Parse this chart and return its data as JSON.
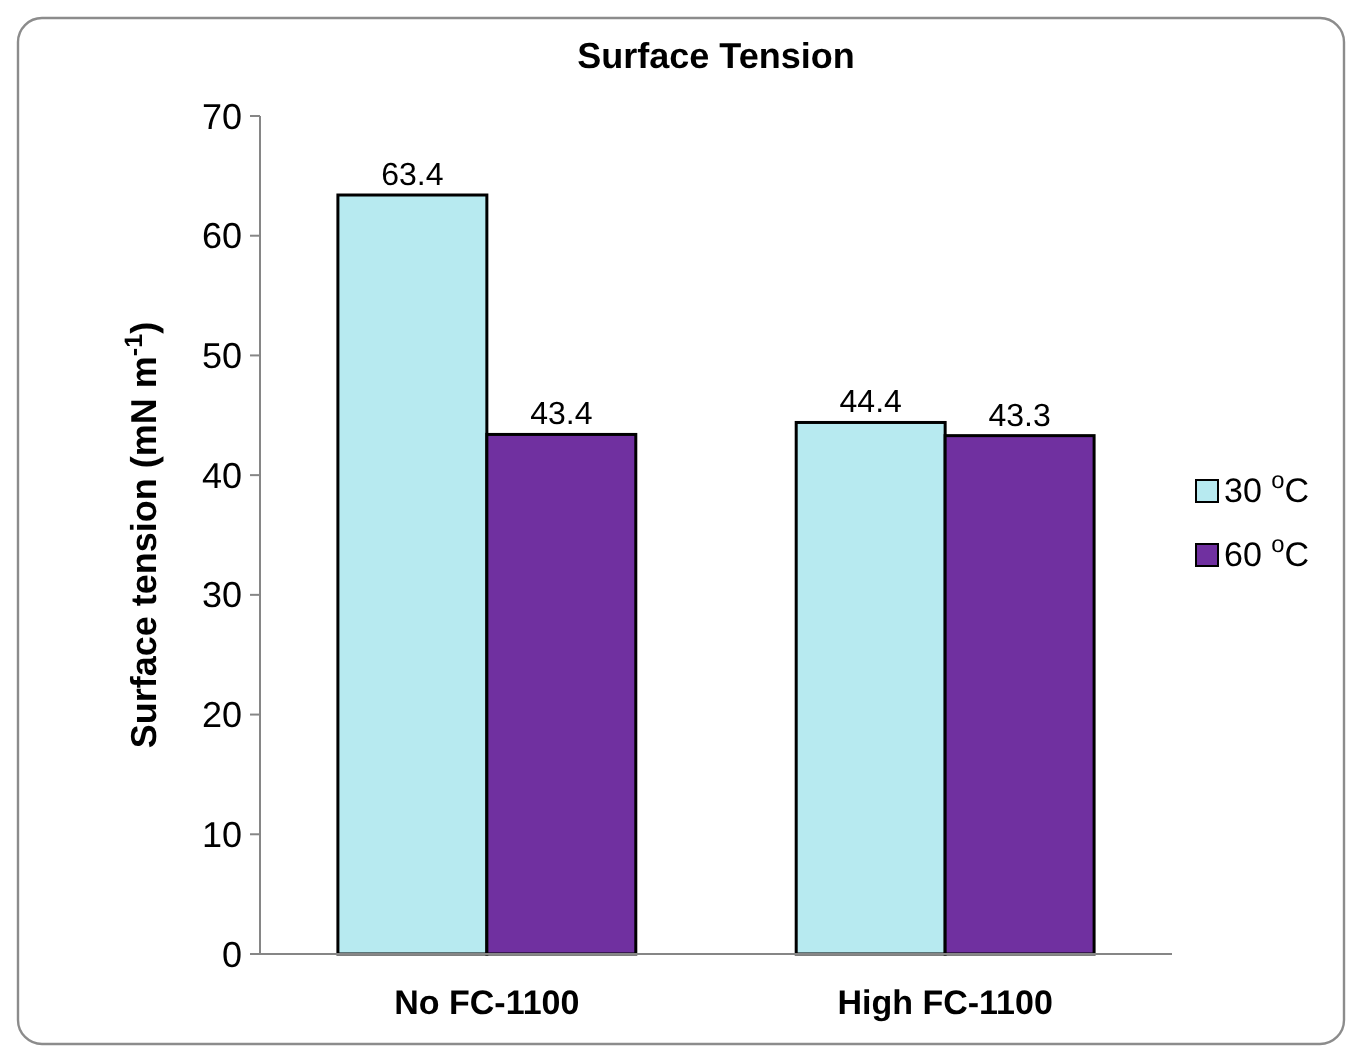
{
  "chart_data": {
    "type": "bar",
    "title": "Surface Tension",
    "ylabel": "Surface tension (mN m$^{-1}$)",
    "categories": [
      "No FC-1100",
      "High FC-1100"
    ],
    "series": [
      {
        "name": "30 $^{o}$C",
        "color": "#b7eaf0",
        "values": [
          63.4,
          44.4
        ]
      },
      {
        "name": "60 $^{o}$C",
        "color": "#7030a0",
        "values": [
          43.4,
          43.3
        ]
      }
    ],
    "ylim": [
      0,
      70
    ],
    "yticks": [
      0,
      10,
      20,
      30,
      40,
      50,
      60,
      70
    ],
    "grid": false,
    "legend": "right",
    "data_labels": true
  }
}
